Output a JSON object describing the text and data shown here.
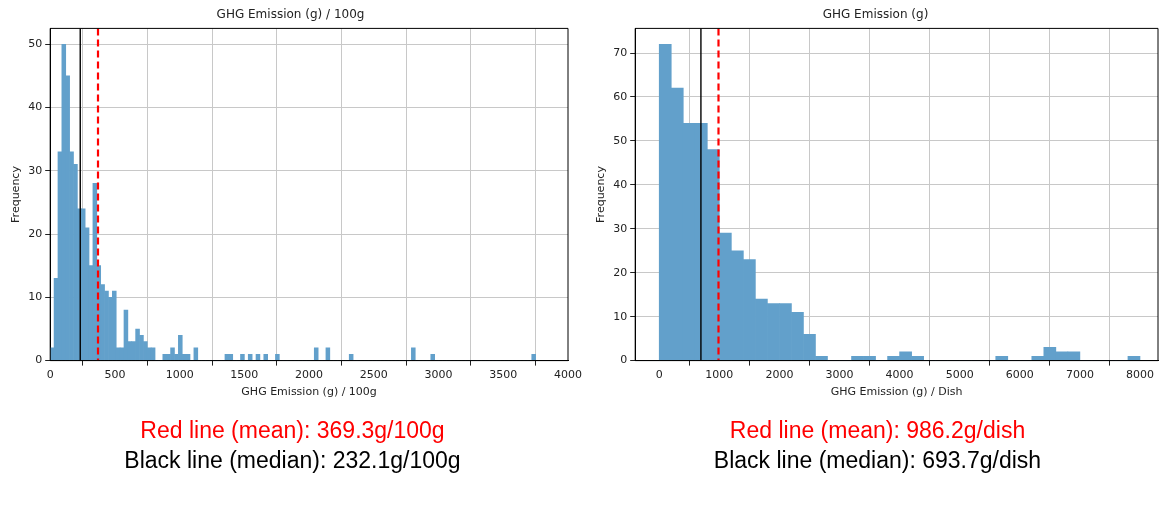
{
  "chart_data": [
    {
      "type": "histogram",
      "title": "GHG Emission (g) / 100g",
      "xlabel": "GHG Emission (g) / 100g",
      "ylabel": "Frequency",
      "bins": [
        0,
        30,
        60,
        90,
        120,
        150,
        180,
        210,
        240,
        270,
        300,
        330,
        360,
        390,
        420,
        450,
        480,
        510,
        540,
        570,
        600,
        630,
        660,
        690,
        720,
        750,
        780,
        810,
        840,
        870,
        900,
        930,
        960,
        990,
        1020,
        1050,
        1080,
        1110,
        1140,
        1170,
        1200,
        1230,
        1260,
        1290,
        1320,
        1350,
        1380,
        1410,
        1440,
        1470,
        1500,
        1530,
        1560,
        1590,
        1620,
        1650,
        1680,
        1710,
        1740,
        1770,
        1800,
        1830,
        1860,
        1890,
        1920,
        1950,
        1980,
        2010,
        2040,
        2070,
        2100,
        2130,
        2160,
        2190,
        2220,
        2250,
        2280,
        2310,
        2340,
        2370,
        2400,
        2430,
        2460,
        2490,
        2520,
        2550,
        2580,
        2610,
        2640,
        2670,
        2700,
        2730,
        2760,
        2790,
        2820,
        2850,
        2880,
        2910,
        2940,
        2970,
        3000,
        3030,
        3060,
        3090,
        3120,
        3150,
        3180,
        3210,
        3240,
        3270,
        3300,
        3330,
        3360,
        3390,
        3420,
        3450,
        3480,
        3510,
        3540,
        3570,
        3600,
        3630,
        3660,
        3690,
        3720,
        3750
      ],
      "values": [
        2,
        13,
        33,
        50,
        45,
        33,
        31,
        24,
        24,
        21,
        15,
        28,
        15,
        12,
        11,
        10,
        11,
        2,
        2,
        8,
        3,
        3,
        5,
        4,
        3,
        2,
        2,
        0,
        0,
        1,
        1,
        2,
        1,
        4,
        1,
        1,
        0,
        2,
        0,
        0,
        0,
        0,
        0,
        0,
        0,
        1,
        1,
        0,
        0,
        1,
        0,
        1,
        0,
        1,
        0,
        1,
        0,
        0,
        1,
        0,
        0,
        0,
        0,
        0,
        0,
        0,
        0,
        0,
        2,
        0,
        0,
        2,
        0,
        0,
        0,
        0,
        0,
        1,
        0,
        0,
        0,
        0,
        0,
        0,
        0,
        0,
        0,
        0,
        0,
        0,
        0,
        0,
        0,
        2,
        0,
        0,
        0,
        0,
        1,
        0,
        0,
        0,
        0,
        0,
        0,
        0,
        0,
        0,
        0,
        0,
        0,
        0,
        0,
        0,
        0,
        0,
        0,
        0,
        0,
        0,
        0,
        0,
        0,
        0,
        1
      ],
      "color": "#62a0cb",
      "xlim": [
        0,
        4000
      ],
      "xticks": [
        0,
        500,
        1000,
        1500,
        2000,
        2500,
        3000,
        3500,
        4000
      ],
      "ylim": [
        0,
        52.5
      ],
      "yticks": [
        0,
        10,
        20,
        30,
        40,
        50
      ],
      "grid": true,
      "ref_lines": [
        {
          "axis": "x",
          "value": 369.3,
          "label": "Red line (mean): 369.3g/100g",
          "color": "#ff0000",
          "line_style": "dashed"
        },
        {
          "axis": "x",
          "value": 232.1,
          "label": "Black line (median): 232.1g/100g",
          "color": "#000000",
          "line_style": "solid"
        }
      ]
    },
    {
      "type": "histogram",
      "title": "GHG Emission (g)",
      "xlabel": "GHG Emission (g) / Dish",
      "ylabel": "Frequency",
      "bins": [
        0,
        200,
        400,
        600,
        800,
        1000,
        1200,
        1400,
        1600,
        1800,
        2000,
        2200,
        2400,
        2600,
        2800,
        3000,
        3200,
        3400,
        3600,
        3800,
        4000,
        4200,
        4400,
        4600,
        4800,
        5000,
        5200,
        5400,
        5600,
        5800,
        6000,
        6200,
        6400,
        6600,
        6800,
        7000,
        7200,
        7400,
        7600,
        7800,
        8000
      ],
      "values": [
        72,
        62,
        54,
        54,
        48,
        29,
        25,
        23,
        14,
        13,
        13,
        11,
        6,
        1,
        0,
        0,
        1,
        1,
        0,
        1,
        2,
        1,
        0,
        0,
        0,
        0,
        0,
        0,
        1,
        0,
        0,
        1,
        3,
        2,
        2,
        0,
        0,
        0,
        0,
        1
      ],
      "color": "#62a0cb",
      "xlim": [
        -400,
        8300
      ],
      "xticks": [
        0,
        1000,
        2000,
        3000,
        4000,
        5000,
        6000,
        7000,
        8000
      ],
      "ylim": [
        0,
        75.6
      ],
      "yticks": [
        0,
        10,
        20,
        30,
        40,
        50,
        60,
        70
      ],
      "grid": true,
      "ref_lines": [
        {
          "axis": "x",
          "value": 986.2,
          "label": "Red line (mean): 986.2g/dish",
          "color": "#ff0000",
          "line_style": "dashed"
        },
        {
          "axis": "x",
          "value": 693.7,
          "label": "Black line (median): 693.7g/dish",
          "color": "#000000",
          "line_style": "solid"
        }
      ]
    }
  ]
}
